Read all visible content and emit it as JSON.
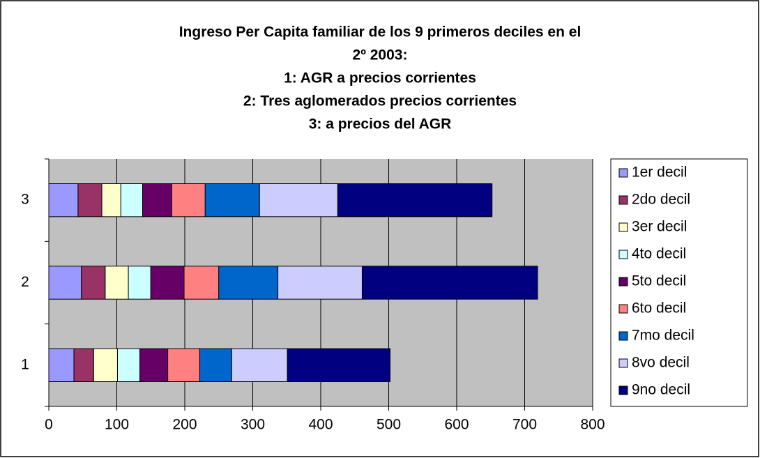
{
  "chart_data": {
    "type": "stacked-bar-horizontal",
    "title": [
      "Ingreso Per Capita familiar de los 9 primeros deciles en el",
      "2º 2003:",
      "1: AGR a precios corrientes",
      "2: Tres aglomerados precios corrientes",
      "3: a precios del AGR"
    ],
    "categories": [
      "1",
      "2",
      "3"
    ],
    "series": [
      {
        "name": "1er decil",
        "color": "#9999FF",
        "values": [
          37,
          48,
          43
        ]
      },
      {
        "name": "2do decil",
        "color": "#993366",
        "values": [
          29,
          35,
          35
        ]
      },
      {
        "name": "3er decil",
        "color": "#FFFFCC",
        "values": [
          35,
          34,
          28
        ]
      },
      {
        "name": "4to decil",
        "color": "#CCFFFF",
        "values": [
          33,
          33,
          32
        ]
      },
      {
        "name": "5to decil",
        "color": "#660066",
        "values": [
          41,
          49,
          43
        ]
      },
      {
        "name": "6to decil",
        "color": "#FF8080",
        "values": [
          47,
          51,
          49
        ]
      },
      {
        "name": "7mo decil",
        "color": "#0066CC",
        "values": [
          47,
          87,
          80
        ]
      },
      {
        "name": "8vo decil",
        "color": "#CCCCFF",
        "values": [
          82,
          124,
          115
        ]
      },
      {
        "name": "9no decil",
        "color": "#000080",
        "values": [
          151,
          258,
          227
        ]
      }
    ],
    "xlim": [
      0,
      800
    ],
    "xticks": [
      0,
      100,
      200,
      300,
      400,
      500,
      600,
      700,
      800
    ],
    "grid": true,
    "legend": "right"
  }
}
